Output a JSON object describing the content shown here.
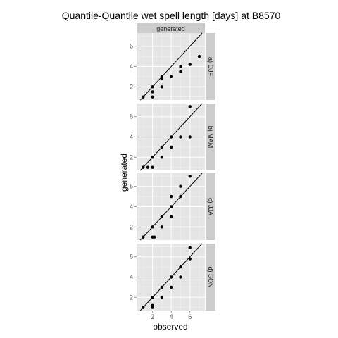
{
  "chart_data": {
    "type": "scatter",
    "title": "Quantile-Quantile wet spell length [days] at B8570",
    "xlabel": "observed",
    "ylabel": "generated",
    "column_strip": "generated",
    "xlim": [
      0.3,
      7.6
    ],
    "ylim": [
      0.7,
      7.3
    ],
    "x_ticks": [
      2,
      4,
      6
    ],
    "y_ticks": [
      2,
      4,
      6
    ],
    "reference_line": "y = x",
    "colors": {
      "panel": "#e5e5e5",
      "strip": "#cccccc",
      "grid": "#ffffff",
      "point": "#000000"
    },
    "panels": [
      {
        "label": "a) DJF",
        "points": [
          [
            1,
            1
          ],
          [
            2,
            1
          ],
          [
            2,
            1.5
          ],
          [
            2,
            2
          ],
          [
            3,
            2
          ],
          [
            3,
            2.8
          ],
          [
            3,
            3
          ],
          [
            4,
            3
          ],
          [
            5,
            3.5
          ],
          [
            5,
            4
          ],
          [
            6,
            4.2
          ],
          [
            7,
            5
          ]
        ]
      },
      {
        "label": "b) MAM",
        "points": [
          [
            1,
            1
          ],
          [
            1.5,
            1
          ],
          [
            2,
            1
          ],
          [
            2,
            2
          ],
          [
            3,
            2
          ],
          [
            3,
            3
          ],
          [
            4,
            3
          ],
          [
            4,
            4
          ],
          [
            5,
            4
          ],
          [
            6,
            4
          ],
          [
            6,
            7
          ]
        ]
      },
      {
        "label": "c) JJA",
        "points": [
          [
            1,
            1
          ],
          [
            2,
            1
          ],
          [
            2.2,
            1
          ],
          [
            2,
            2
          ],
          [
            3,
            2
          ],
          [
            3,
            3
          ],
          [
            4,
            3
          ],
          [
            4,
            4
          ],
          [
            4,
            5
          ],
          [
            5,
            5
          ],
          [
            5,
            6
          ],
          [
            6,
            7
          ]
        ]
      },
      {
        "label": "d) SON",
        "points": [
          [
            1,
            1
          ],
          [
            2,
            1
          ],
          [
            2,
            1.2
          ],
          [
            2,
            2
          ],
          [
            3,
            2
          ],
          [
            3,
            3
          ],
          [
            4,
            3
          ],
          [
            4,
            4
          ],
          [
            5,
            4
          ],
          [
            5,
            5
          ],
          [
            6,
            5.8
          ],
          [
            6,
            6.9
          ]
        ]
      }
    ]
  }
}
